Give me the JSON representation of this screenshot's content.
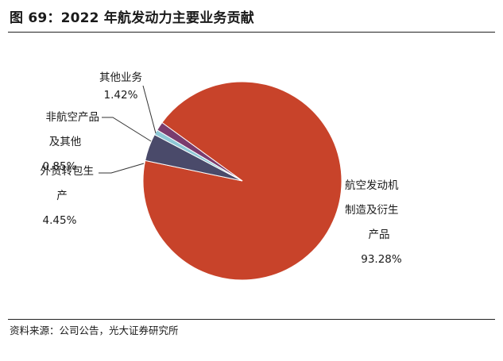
{
  "figure": {
    "title": "图 69：2022 年航发动力主要业务贡献",
    "source": "资料来源：公司公告，光大证券研究所"
  },
  "chart_data": {
    "type": "pie",
    "title": "",
    "slices": [
      {
        "label_lines": [
          "航空发动机",
          "制造及衍生",
          "产品"
        ],
        "value": 93.28,
        "value_label": "93.28%",
        "color": "#c8432a"
      },
      {
        "label_lines": [
          "外贸转包生",
          "产"
        ],
        "value": 4.45,
        "value_label": "4.45%",
        "color": "#4a4a6a"
      },
      {
        "label_lines": [
          "非航空产品",
          "及其他"
        ],
        "value": 0.85,
        "value_label": "0.85%",
        "color": "#8ec8d6"
      },
      {
        "label_lines": [
          "其他业务"
        ],
        "value": 1.42,
        "value_label": "1.42%",
        "color": "#7a3c6e"
      }
    ]
  }
}
